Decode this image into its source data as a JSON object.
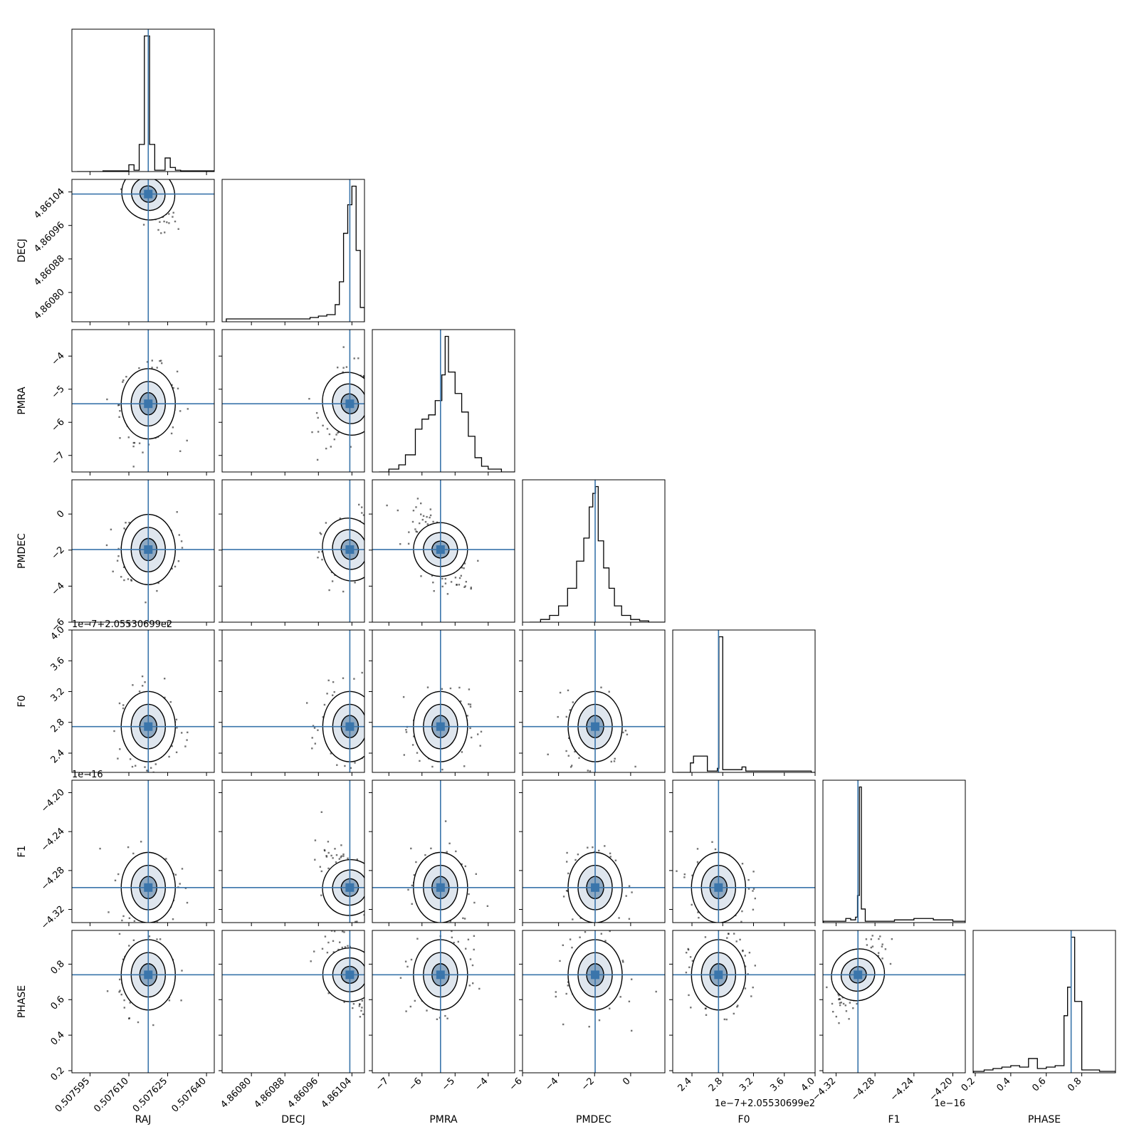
{
  "chart_data": {
    "type": "corner",
    "parameters": [
      "RAJ",
      "DECJ",
      "PMRA",
      "PMDEC",
      "F0",
      "F1",
      "PHASE"
    ],
    "truth_values": [
      0.5076175,
      4.861035,
      -5.44,
      -1.97,
      2.745,
      -4.2975,
      0.74
    ],
    "truth_color": "#3a75ab",
    "offset_labels": [
      "",
      "",
      "",
      "",
      "1e−7+2.05530699e2",
      "1e−16",
      ""
    ],
    "ranges": [
      [
        0.507588,
        0.507643
      ],
      [
        4.86073,
        4.86107
      ],
      [
        -7.5,
        -3.2
      ],
      [
        -6.0,
        1.9
      ],
      [
        2.15,
        4.0
      ],
      [
        -4.3335,
        -4.1872
      ],
      [
        0.188,
        0.99
      ]
    ],
    "ticks": [
      [
        0.507595,
        0.50761,
        0.507625,
        0.50764
      ],
      [
        4.8608,
        4.86088,
        4.86096,
        4.86104
      ],
      [
        -7,
        -6,
        -5,
        -4
      ],
      [
        -6,
        -4,
        -2,
        0
      ],
      [
        2.4,
        2.8,
        3.2,
        3.6,
        4.0
      ],
      [
        -4.32,
        -4.28,
        -4.24,
        -4.2
      ],
      [
        0.2,
        0.4,
        0.6,
        0.8
      ]
    ],
    "tick_labels": [
      [
        "0.507595",
        "0.507610",
        "0.507625",
        "0.507640"
      ],
      [
        "4.86080",
        "4.86088",
        "4.86096",
        "4.86104"
      ],
      [
        "−7",
        "−6",
        "−5",
        "−4"
      ],
      [
        "−6",
        "−4",
        "−2",
        "0"
      ],
      [
        "2.4",
        "2.8",
        "3.2",
        "3.6",
        "4.0"
      ],
      [
        "−4.32",
        "−4.28",
        "−4.24",
        "−4.20"
      ],
      [
        "0.2",
        "0.4",
        "0.6",
        "0.8"
      ]
    ],
    "histograms": [
      {
        "x": [
          0.50759,
          0.5076,
          0.50761,
          0.507612,
          0.507614,
          0.507616,
          0.507618,
          0.50762,
          0.507622,
          0.507624,
          0.507626,
          0.507628,
          0.50763,
          0.50764
        ],
        "y": [
          0,
          0.005,
          0.05,
          0.01,
          0.2,
          1.0,
          0.2,
          0.01,
          0.01,
          0.1,
          0.03,
          0.01,
          0.005,
          0.005
        ]
      },
      {
        "x": [
          4.86074,
          4.8608,
          4.86086,
          4.8609,
          4.86094,
          4.86096,
          4.86098,
          4.861,
          4.86101,
          4.86102,
          4.86103,
          4.86104,
          4.86105,
          4.86106
        ],
        "y": [
          0.02,
          0.02,
          0.02,
          0.02,
          0.03,
          0.04,
          0.05,
          0.12,
          0.28,
          0.62,
          0.82,
          0.95,
          0.5,
          0.1
        ]
      },
      {
        "x": [
          -7.3,
          -7.0,
          -6.7,
          -6.5,
          -6.2,
          -6.0,
          -5.8,
          -5.6,
          -5.4,
          -5.3,
          -5.2,
          -5.0,
          -4.8,
          -4.6,
          -4.4,
          -4.2,
          -4.0,
          -3.6
        ],
        "y": [
          0.0,
          0.02,
          0.05,
          0.12,
          0.3,
          0.37,
          0.4,
          0.5,
          0.68,
          0.95,
          0.7,
          0.55,
          0.42,
          0.25,
          0.1,
          0.04,
          0.02,
          0.0
        ]
      },
      {
        "x": [
          -5.6,
          -5.0,
          -4.5,
          -4.0,
          -3.5,
          -3.0,
          -2.6,
          -2.3,
          -2.1,
          -1.95,
          -1.8,
          -1.5,
          -1.2,
          -0.9,
          -0.5,
          0.0,
          0.5,
          1.0
        ],
        "y": [
          0.0,
          0.02,
          0.05,
          0.12,
          0.25,
          0.45,
          0.62,
          0.85,
          0.95,
          1.0,
          0.6,
          0.4,
          0.25,
          0.12,
          0.05,
          0.02,
          0.01,
          0.0
        ]
      },
      {
        "x": [
          2.2,
          2.38,
          2.42,
          2.6,
          2.73,
          2.75,
          2.8,
          3.0,
          3.05,
          3.1,
          3.4,
          3.7,
          3.95
        ],
        "y": [
          0.0,
          0.07,
          0.12,
          0.01,
          0.03,
          1.0,
          0.02,
          0.02,
          0.04,
          0.01,
          0.01,
          0.01,
          0.0
        ]
      },
      {
        "x": [
          -4.333,
          -4.31,
          -4.305,
          -4.3,
          -4.298,
          -4.296,
          -4.294,
          -4.29,
          -4.28,
          -4.26,
          -4.24,
          -4.22,
          -4.2,
          -4.19
        ],
        "y": [
          0.01,
          0.03,
          0.02,
          0.04,
          0.2,
          1.0,
          0.1,
          0.01,
          0.01,
          0.02,
          0.03,
          0.02,
          0.01,
          0.01
        ]
      },
      {
        "x": [
          0.19,
          0.25,
          0.3,
          0.35,
          0.4,
          0.45,
          0.5,
          0.55,
          0.6,
          0.65,
          0.7,
          0.72,
          0.74,
          0.76,
          0.8,
          0.9,
          0.98
        ],
        "y": [
          0.01,
          0.02,
          0.03,
          0.04,
          0.05,
          0.04,
          0.1,
          0.03,
          0.04,
          0.05,
          0.4,
          0.6,
          0.95,
          0.5,
          0.02,
          0.01,
          0.01
        ]
      }
    ],
    "correlations": {
      "2,1": 0.25,
      "3,1": 0.25,
      "3,2": -0.6,
      "5,1": -0.5,
      "6,1": -0.6,
      "6,5": 0.7,
      "4,1": 0.0,
      "4,2": 0.0,
      "4,3": 0.0,
      "5,2": 0.0,
      "5,3": 0.0,
      "6,2": 0.0,
      "6,3": 0.0,
      "5,0": 0.0,
      "6,0": 0.0,
      "6,4": 0.0,
      "5,4": 0.0,
      "1,0": -0.7,
      "2,0": 0.0,
      "3,0": 0.0,
      "4,0": 0.0
    }
  }
}
